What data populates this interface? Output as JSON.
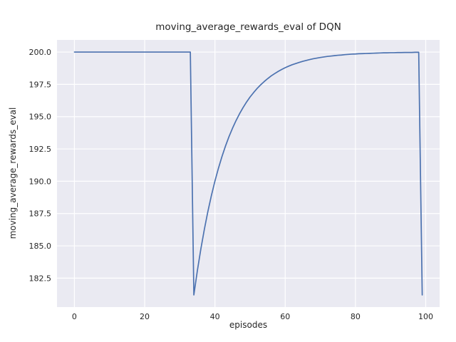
{
  "figure": {
    "background": "#ffffff",
    "axes_background": "#eaeaf2",
    "grid_color": "#ffffff",
    "text_color": "#262626",
    "line_color": "#4c72b0"
  },
  "chart_data": {
    "type": "line",
    "title": "moving_average_rewards_eval of DQN",
    "xlabel": "episodes",
    "ylabel": "moving_average_rewards_eval",
    "xlim": [
      -4.95,
      103.95
    ],
    "ylim": [
      180.26,
      200.94
    ],
    "grid": true,
    "legend": false,
    "x_ticks": [
      0,
      20,
      40,
      60,
      80,
      100
    ],
    "x_tick_labels": [
      "0",
      "20",
      "40",
      "60",
      "80",
      "100"
    ],
    "y_ticks": [
      182.5,
      185.0,
      187.5,
      190.0,
      192.5,
      195.0,
      197.5,
      200.0
    ],
    "y_tick_labels": [
      "182.5",
      "185.0",
      "187.5",
      "190.0",
      "192.5",
      "195.0",
      "197.5",
      "200.0"
    ],
    "series": [
      {
        "name": "moving_average_rewards_eval",
        "x": [
          0,
          1,
          2,
          3,
          4,
          5,
          6,
          7,
          8,
          9,
          10,
          11,
          12,
          13,
          14,
          15,
          16,
          17,
          18,
          19,
          20,
          21,
          22,
          23,
          24,
          25,
          26,
          27,
          28,
          29,
          30,
          31,
          32,
          33,
          34,
          35,
          36,
          37,
          38,
          39,
          40,
          41,
          42,
          43,
          44,
          45,
          46,
          47,
          48,
          49,
          50,
          51,
          52,
          53,
          54,
          55,
          56,
          57,
          58,
          59,
          60,
          61,
          62,
          63,
          64,
          65,
          66,
          67,
          68,
          69,
          70,
          71,
          72,
          73,
          74,
          75,
          76,
          77,
          78,
          79,
          80,
          81,
          82,
          83,
          84,
          85,
          86,
          87,
          88,
          89,
          90,
          91,
          92,
          93,
          94,
          95,
          96,
          97,
          98,
          99
        ],
        "y": [
          200.0,
          200.0,
          200.0,
          200.0,
          200.0,
          200.0,
          200.0,
          200.0,
          200.0,
          200.0,
          200.0,
          200.0,
          200.0,
          200.0,
          200.0,
          200.0,
          200.0,
          200.0,
          200.0,
          200.0,
          200.0,
          200.0,
          200.0,
          200.0,
          200.0,
          200.0,
          200.0,
          200.0,
          200.0,
          200.0,
          200.0,
          200.0,
          200.0,
          200.0,
          181.2,
          183.08,
          184.77,
          186.29,
          187.67,
          188.9,
          190.01,
          191.01,
          191.91,
          192.72,
          193.45,
          194.1,
          194.69,
          195.22,
          195.7,
          196.13,
          196.52,
          196.86,
          197.18,
          197.46,
          197.71,
          197.94,
          198.15,
          198.33,
          198.5,
          198.65,
          198.79,
          198.91,
          199.02,
          199.11,
          199.2,
          199.28,
          199.35,
          199.42,
          199.48,
          199.53,
          199.58,
          199.62,
          199.66,
          199.69,
          199.72,
          199.75,
          199.77,
          199.8,
          199.82,
          199.84,
          199.85,
          199.87,
          199.88,
          199.89,
          199.9,
          199.91,
          199.92,
          199.93,
          199.94,
          199.94,
          199.95,
          199.95,
          199.96,
          199.96,
          199.97,
          199.97,
          199.97,
          199.98,
          199.98,
          181.2
        ]
      }
    ]
  }
}
